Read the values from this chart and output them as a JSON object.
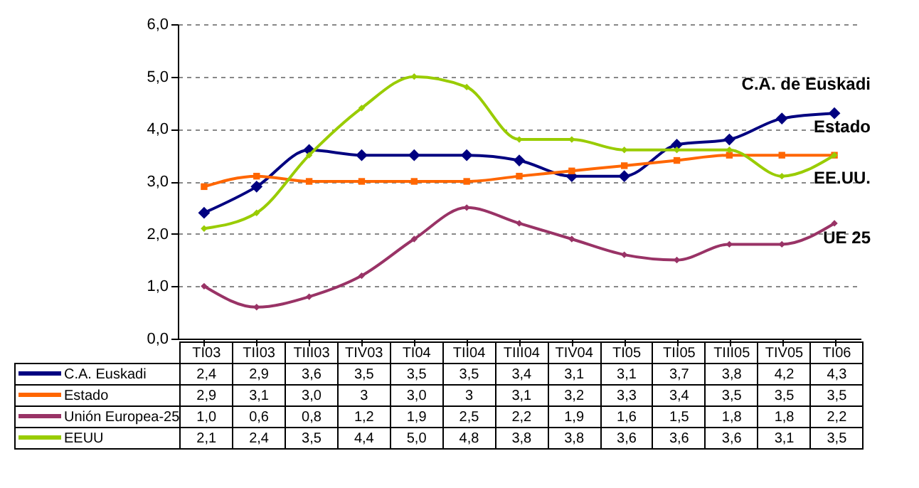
{
  "chart_data": {
    "type": "line",
    "categories": [
      "TI03",
      "TII03",
      "TIII03",
      "TIV03",
      "TI04",
      "TII04",
      "TIII04",
      "TIV04",
      "TI05",
      "TII05",
      "TIII05",
      "TIV05",
      "TI06"
    ],
    "ylim": [
      0,
      6
    ],
    "yticks": [
      {
        "value": 0,
        "label": "0,0"
      },
      {
        "value": 1,
        "label": "1,0"
      },
      {
        "value": 2,
        "label": "2,0"
      },
      {
        "value": 3,
        "label": "3,0"
      },
      {
        "value": 4,
        "label": "4,0"
      },
      {
        "value": 5,
        "label": "5,0"
      },
      {
        "value": 6,
        "label": "6,0"
      }
    ],
    "grid": "y",
    "legend": "bottom left",
    "series": [
      {
        "name": "C.A. Euskadi",
        "color": "#000080",
        "marker": "diamond",
        "values": [
          2.4,
          2.9,
          3.6,
          3.5,
          3.5,
          3.5,
          3.4,
          3.1,
          3.1,
          3.7,
          3.8,
          4.2,
          4.3
        ],
        "value_labels": [
          "2,4",
          "2,9",
          "3,6",
          "3,5",
          "3,5",
          "3,5",
          "3,4",
          "3,1",
          "3,1",
          "3,7",
          "3,8",
          "4,2",
          "4,3"
        ]
      },
      {
        "name": "Estado",
        "color": "#ff6600",
        "marker": "square",
        "values": [
          2.9,
          3.1,
          3.0,
          3,
          3.0,
          3,
          3.1,
          3.2,
          3.3,
          3.4,
          3.5,
          3.5,
          3.5
        ],
        "value_labels": [
          "2,9",
          "3,1",
          "3,0",
          "3",
          "3,0",
          "3",
          "3,1",
          "3,2",
          "3,3",
          "3,4",
          "3,5",
          "3,5",
          "3,5"
        ]
      },
      {
        "name": "Unión Europea-25",
        "color": "#993366",
        "marker": "diamond",
        "values": [
          1.0,
          0.6,
          0.8,
          1.2,
          1.9,
          2.5,
          2.2,
          1.9,
          1.6,
          1.5,
          1.8,
          1.8,
          2.2
        ],
        "value_labels": [
          "1,0",
          "0,6",
          "0,8",
          "1,2",
          "1,9",
          "2,5",
          "2,2",
          "1,9",
          "1,6",
          "1,5",
          "1,8",
          "1,8",
          "2,2"
        ]
      },
      {
        "name": "EEUU",
        "color": "#99cc00",
        "marker": "diamond",
        "values": [
          2.1,
          2.4,
          3.5,
          4.4,
          5.0,
          4.8,
          3.8,
          3.8,
          3.6,
          3.6,
          3.6,
          3.1,
          3.5
        ],
        "value_labels": [
          "2,1",
          "2,4",
          "3,5",
          "4,4",
          "5,0",
          "4,8",
          "3,8",
          "3,8",
          "3,6",
          "3,6",
          "3,6",
          "3,1",
          "3,5"
        ]
      }
    ],
    "annotations": [
      "C.A. de Euskadi",
      "Estado",
      "EE.UU.",
      "UE 25"
    ]
  }
}
